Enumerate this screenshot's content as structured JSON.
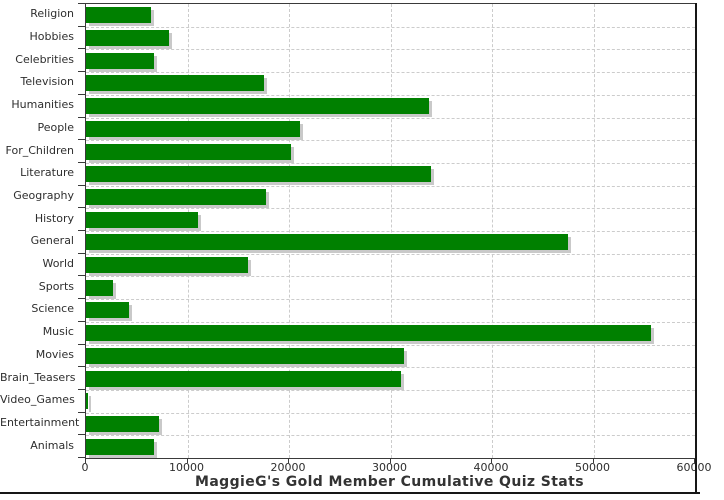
{
  "chart_data": {
    "type": "bar",
    "orientation": "horizontal",
    "title": "MaggieG's Gold Member Cumulative Quiz Stats",
    "categories": [
      "Religion",
      "Hobbies",
      "Celebrities",
      "Television",
      "Humanities",
      "People",
      "For_Children",
      "Literature",
      "Geography",
      "History",
      "General",
      "World",
      "Sports",
      "Science",
      "Music",
      "Movies",
      "Brain_Teasers",
      "Video_Games",
      "Entertainment",
      "Animals"
    ],
    "values": [
      6400,
      8200,
      6700,
      17500,
      33800,
      21100,
      20200,
      34000,
      17700,
      11000,
      47500,
      16000,
      2700,
      4200,
      55700,
      31300,
      31000,
      200,
      7200,
      6700
    ],
    "xlim": [
      0,
      60000
    ],
    "x_ticks": [
      0,
      10000,
      20000,
      30000,
      40000,
      50000,
      60000
    ],
    "xlabel": "",
    "ylabel": "",
    "legend": "none",
    "grid": "dashed-both-axes",
    "colors": {
      "bar_fill": "#008000",
      "bar_shadow": "#c9c9c9",
      "gridline": "#cccccc",
      "axis": "#3a3a3a",
      "text": "#2e2e2e",
      "title_text": "#333333",
      "background": "#ffffff",
      "frame": "#161616"
    }
  }
}
